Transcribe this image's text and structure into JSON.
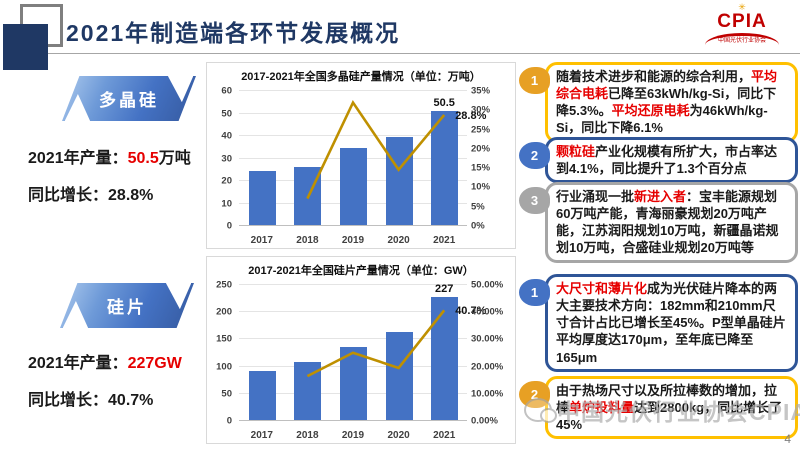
{
  "header": {
    "title": "2021年制造端各环节发展概况",
    "logo": {
      "name": "CPIA",
      "subtitle": "中国光伏行业协会",
      "brand_color": "#C00000"
    }
  },
  "sections": [
    {
      "banner": "多晶硅",
      "stat1_label": "2021年产量：",
      "stat1_value": "50.5",
      "stat1_unit": "万吨",
      "stat2_label": "同比增长：",
      "stat2_value": "28.8%"
    },
    {
      "banner": "硅片",
      "stat1_label": "2021年产量：",
      "stat1_value": "227GW",
      "stat1_unit": "",
      "stat2_label": "同比增长：",
      "stat2_value": "40.7%"
    }
  ],
  "chart_data": [
    {
      "type": "bar+line",
      "title": "2017-2021年全国多晶硅产量情况（单位：万吨）",
      "categories": [
        "2017",
        "2018",
        "2019",
        "2020",
        "2021"
      ],
      "series": [
        {
          "name": "产量(万吨)",
          "type": "bar",
          "axis": "left",
          "color": "#4472C4",
          "values": [
            24.2,
            25.9,
            34.2,
            39.2,
            50.5
          ]
        },
        {
          "name": "同比增长",
          "type": "line",
          "axis": "right",
          "color": "#BF9000",
          "values": [
            null,
            7.1,
            32.0,
            14.6,
            28.8
          ]
        }
      ],
      "left_axis": {
        "min": 0,
        "max": 60,
        "ticks": [
          "0",
          "10",
          "20",
          "30",
          "40",
          "50",
          "60"
        ]
      },
      "right_axis": {
        "min": 0,
        "max": 35,
        "ticks": [
          "0%",
          "5%",
          "10%",
          "15%",
          "20%",
          "25%",
          "30%",
          "35%"
        ]
      },
      "value_label": "50.5",
      "pct_label": "28.8%",
      "grid": true,
      "legend": false
    },
    {
      "type": "bar+line",
      "title": "2017-2021年全国硅片产量情况（单位：GW）",
      "categories": [
        "2017",
        "2018",
        "2019",
        "2020",
        "2021"
      ],
      "series": [
        {
          "name": "产量(GW)",
          "type": "bar",
          "axis": "left",
          "color": "#4472C4",
          "values": [
            91,
            107,
            135,
            161,
            227
          ]
        },
        {
          "name": "同比增长",
          "type": "line",
          "axis": "right",
          "color": "#BF9000",
          "values": [
            null,
            16.5,
            25.1,
            19.5,
            40.7
          ]
        }
      ],
      "left_axis": {
        "min": 0,
        "max": 250,
        "ticks": [
          "0",
          "50",
          "100",
          "150",
          "200",
          "250"
        ]
      },
      "right_axis": {
        "min": 0,
        "max": 50,
        "ticks": [
          "0.00%",
          "10.00%",
          "20.00%",
          "30.00%",
          "40.00%",
          "50.00%"
        ]
      },
      "value_label": "227",
      "pct_label": "40.7%",
      "grid": true,
      "legend": false
    }
  ],
  "callouts": [
    {
      "badge": "1",
      "theme": "gold",
      "segments": [
        {
          "t": "随着技术进步和能源的综合利用，",
          "red": false
        },
        {
          "t": "平均综合电耗",
          "red": true
        },
        {
          "t": "已降至63kWh/kg-Si，同比下降5.3%。",
          "red": false
        },
        {
          "t": "平均还原电耗",
          "red": true
        },
        {
          "t": "为46kWh/kg-Si，同比下降6.1%",
          "red": false
        }
      ]
    },
    {
      "badge": "2",
      "theme": "blue",
      "segments": [
        {
          "t": "颗粒硅",
          "red": true
        },
        {
          "t": "产业化规模有所扩大，市占率达到4.1%，同比提升了1.3个百分点",
          "red": false
        }
      ]
    },
    {
      "badge": "3",
      "theme": "gray",
      "segments": [
        {
          "t": "行业涌现一批",
          "red": false
        },
        {
          "t": "新进入者",
          "red": true
        },
        {
          "t": "：宝丰能源规划60万吨产能，青海丽豪规划20万吨产能，江苏润阳规划10万吨，新疆晶诺规划10万吨，合盛硅业规划20万吨等",
          "red": false
        }
      ]
    },
    {
      "badge": "1",
      "theme": "blue",
      "segments": [
        {
          "t": "大尺寸和薄片化",
          "red": true
        },
        {
          "t": "成为光伏硅片降本的两大主要技术方向：182mm和210mm尺寸合计占比已增长至45%。P型单晶硅片平均厚度达170μm，至年底已降至165μm",
          "red": false
        }
      ]
    },
    {
      "badge": "2",
      "theme": "gold",
      "segments": [
        {
          "t": "由于热场尺寸以及所拉棒数的增加，拉棒",
          "red": false
        },
        {
          "t": "单炉投料量",
          "red": true
        },
        {
          "t": "达到2800kg，同比增长了45%",
          "red": false
        }
      ]
    }
  ],
  "watermark": {
    "text": "中国光伏行业协会CPIA"
  },
  "page_number": "4",
  "colors": {
    "title_navy": "#1F3864",
    "bar_blue": "#4472C4",
    "line_gold": "#BF9000",
    "highlight_red": "#E60000",
    "gold_border": "#FFC000",
    "blue_border": "#2F5597",
    "gray_border": "#A6A6A6"
  }
}
